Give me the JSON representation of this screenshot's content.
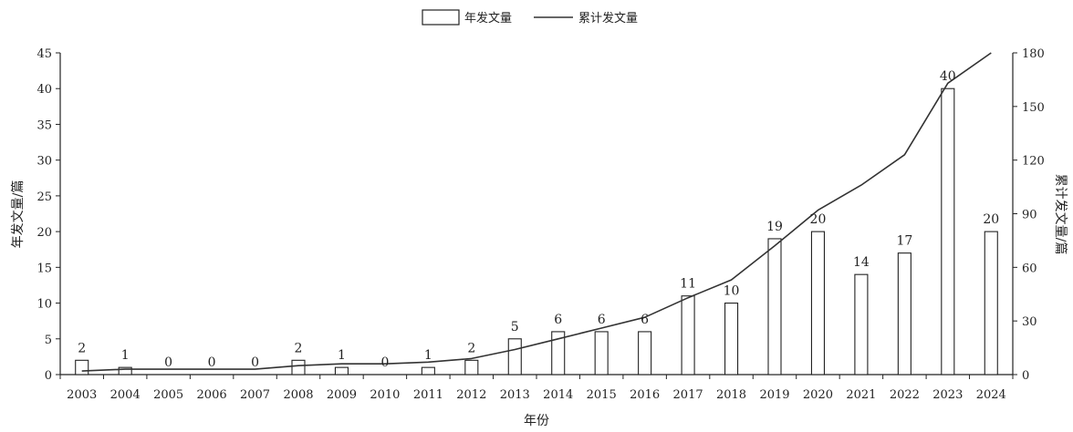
{
  "chart_data": {
    "type": "bar",
    "categories": [
      "2003",
      "2004",
      "2005",
      "2006",
      "2007",
      "2008",
      "2009",
      "2010",
      "2011",
      "2012",
      "2013",
      "2014",
      "2015",
      "2016",
      "2017",
      "2018",
      "2019",
      "2020",
      "2021",
      "2022",
      "2023",
      "2024"
    ],
    "series": [
      {
        "name": "年发文量",
        "type": "bar",
        "axis": "left",
        "values": [
          2,
          1,
          0,
          0,
          0,
          2,
          1,
          0,
          1,
          2,
          5,
          6,
          6,
          6,
          11,
          10,
          19,
          20,
          14,
          17,
          40,
          20
        ]
      },
      {
        "name": "累计发文量",
        "type": "line",
        "axis": "right",
        "values": [
          2,
          3,
          3,
          3,
          3,
          5,
          6,
          6,
          7,
          9,
          14,
          20,
          26,
          32,
          43,
          53,
          72,
          92,
          106,
          123,
          163,
          183
        ]
      }
    ],
    "xlabel": "年份",
    "ylabel_left": "年发文量/篇",
    "ylabel_right": "累计发文量/篇",
    "ylim_left": [
      0,
      45
    ],
    "yticks_left": [
      0,
      5,
      10,
      15,
      20,
      25,
      30,
      35,
      40,
      45
    ],
    "ylim_right": [
      0,
      180
    ],
    "yticks_right": [
      0,
      30,
      60,
      90,
      120,
      150,
      180
    ],
    "legend_position": "top-center",
    "grid": false
  }
}
